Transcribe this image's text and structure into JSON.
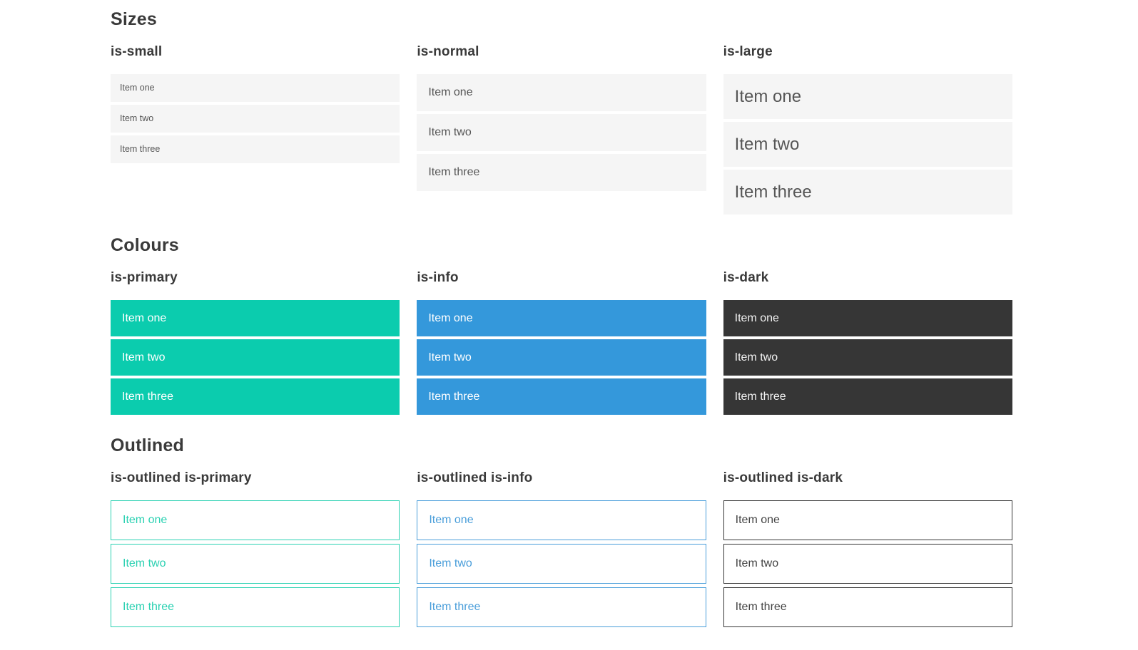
{
  "sections": [
    {
      "title": "Sizes",
      "columns": [
        {
          "heading": "is-small",
          "items": [
            "Item one",
            "Item two",
            "Item three"
          ]
        },
        {
          "heading": "is-normal",
          "items": [
            "Item one",
            "Item two",
            "Item three"
          ]
        },
        {
          "heading": "is-large",
          "items": [
            "Item one",
            "Item two",
            "Item three"
          ]
        }
      ]
    },
    {
      "title": "Colours",
      "columns": [
        {
          "heading": "is-primary",
          "items": [
            "Item one",
            "Item two",
            "Item three"
          ]
        },
        {
          "heading": "is-info",
          "items": [
            "Item one",
            "Item two",
            "Item three"
          ]
        },
        {
          "heading": "is-dark",
          "items": [
            "Item one",
            "Item two",
            "Item three"
          ]
        }
      ]
    },
    {
      "title": "Outlined",
      "columns": [
        {
          "heading": "is-outlined is-primary",
          "items": [
            "Item one",
            "Item two",
            "Item three"
          ]
        },
        {
          "heading": "is-outlined is-info",
          "items": [
            "Item one",
            "Item two",
            "Item three"
          ]
        },
        {
          "heading": "is-outlined is-dark",
          "items": [
            "Item one",
            "Item two",
            "Item three"
          ]
        }
      ]
    }
  ],
  "colors": {
    "primary": "#0bccae",
    "info": "#3498db",
    "dark": "#363636",
    "item-bg": "#f5f5f5",
    "text-muted": "#565656",
    "heading": "#3a3a3a",
    "outlined-primary": "#2bd1b2",
    "outlined-info": "#4a9eda",
    "outlined-dark": "#363636"
  }
}
